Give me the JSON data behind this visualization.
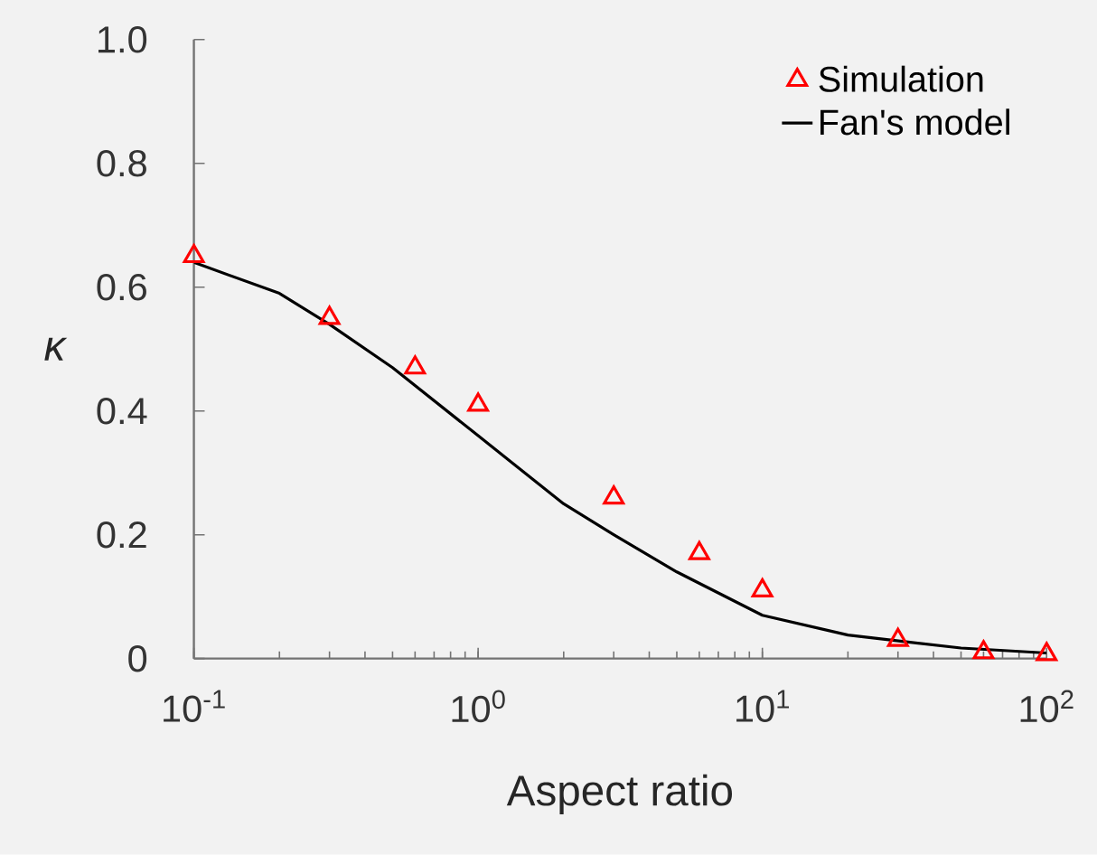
{
  "chart_data": {
    "type": "scatter",
    "xlabel": "Aspect ratio",
    "ylabel": "κ",
    "log": "x",
    "xlim": [
      0.1,
      100
    ],
    "ylim": [
      0,
      1
    ],
    "xticks": [
      {
        "value": 0.1,
        "label": "10$^{-1}$"
      },
      {
        "value": 1,
        "label": "10$^{0}$"
      },
      {
        "value": 10,
        "label": "10$^{1}$"
      },
      {
        "value": 100,
        "label": "10$^{2}$"
      }
    ],
    "yticks": [
      0,
      0.2,
      0.4,
      0.6,
      0.8,
      {
        "value": 1,
        "label": "1.0"
      }
    ],
    "legend": "top right",
    "series": [
      {
        "name": "Simulation",
        "type": "scatter",
        "color": "#ff0000",
        "marker": "triangle",
        "x": [
          0.1,
          0.3,
          0.6,
          1,
          3,
          6,
          10,
          30,
          60,
          100
        ],
        "values": [
          0.65,
          0.55,
          0.47,
          0.41,
          0.26,
          0.17,
          0.11,
          0.03,
          0.01,
          0.007
        ]
      },
      {
        "name": "Fan's model",
        "type": "line",
        "color": "#000000",
        "marker": "none",
        "line_style": "solid",
        "x": [
          0.1,
          0.2,
          0.3,
          0.5,
          1,
          2,
          3,
          5,
          10,
          20,
          50,
          100
        ],
        "values": [
          0.64,
          0.59,
          0.54,
          0.47,
          0.36,
          0.25,
          0.2,
          0.14,
          0.07,
          0.038,
          0.017,
          0.009
        ]
      }
    ]
  }
}
